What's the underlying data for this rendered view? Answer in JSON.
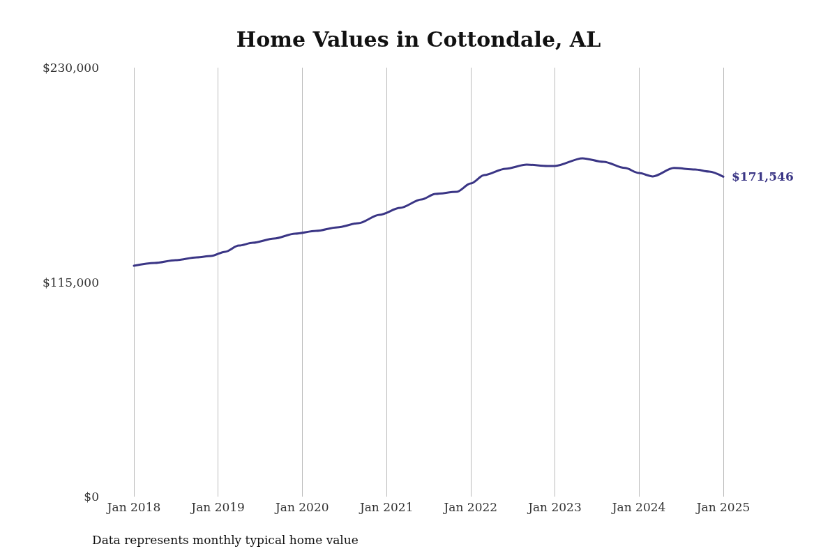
{
  "chart_data": {
    "type": "line",
    "title": "Home Values in Cottondale, AL",
    "x": [
      "2018-01",
      "2018-04",
      "2018-07",
      "2018-10",
      "2018-12",
      "2019-02",
      "2019-04",
      "2019-06",
      "2019-09",
      "2019-12",
      "2020-03",
      "2020-06",
      "2020-09",
      "2020-12",
      "2021-03",
      "2021-06",
      "2021-08",
      "2021-11",
      "2022-01",
      "2022-03",
      "2022-06",
      "2022-09",
      "2022-12",
      "2023-01",
      "2023-05",
      "2023-08",
      "2023-11",
      "2024-01",
      "2024-03",
      "2024-06",
      "2024-09",
      "2024-11",
      "2025-01"
    ],
    "series": [
      {
        "color": "#3a3585",
        "values": [
          123800,
          125300,
          126800,
          128300,
          129000,
          131300,
          134600,
          136100,
          138400,
          141000,
          142500,
          144400,
          146600,
          151100,
          154800,
          159300,
          162300,
          163400,
          167900,
          172400,
          175800,
          178000,
          177300,
          177300,
          181400,
          179500,
          176200,
          173500,
          171700,
          176200,
          175400,
          174300,
          171546
        ]
      }
    ],
    "xticks": [
      {
        "value": "2018-01",
        "label": "Jan 2018"
      },
      {
        "value": "2019-01",
        "label": "Jan 2019"
      },
      {
        "value": "2020-01",
        "label": "Jan 2020"
      },
      {
        "value": "2021-01",
        "label": "Jan 2021"
      },
      {
        "value": "2022-01",
        "label": "Jan 2022"
      },
      {
        "value": "2023-01",
        "label": "Jan 2023"
      },
      {
        "value": "2024-01",
        "label": "Jan 2024"
      },
      {
        "value": "2025-01",
        "label": "Jan 2025"
      }
    ],
    "xlim": [
      "2018-01",
      "2025-01"
    ],
    "ylim": [
      0,
      230000
    ],
    "yticks": [
      {
        "value": 0,
        "label": "$0"
      },
      {
        "value": 115000,
        "label": "$115,000"
      },
      {
        "value": 230000,
        "label": "$230,000"
      }
    ],
    "grid": "x",
    "marker": "none",
    "line_style": "solid",
    "annotations": [
      {
        "text": "$171,546",
        "x": "2025-01",
        "y": 171546
      },
      "Data represents monthly typical home value"
    ]
  }
}
